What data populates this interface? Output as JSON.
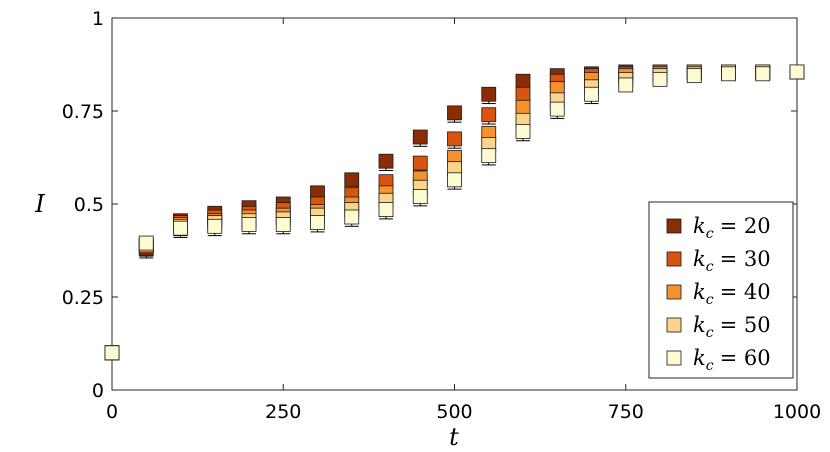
{
  "chart_data": {
    "type": "scatter",
    "title": "",
    "xlabel": "t",
    "ylabel": "I",
    "xlim": [
      0,
      1000
    ],
    "ylim": [
      0,
      1
    ],
    "xticks": [
      "0",
      "250",
      "500",
      "750",
      "1000"
    ],
    "yticks": [
      "0",
      "0.25",
      "0.5",
      "0.75",
      "1"
    ],
    "x": [
      0,
      50,
      100,
      150,
      200,
      250,
      300,
      350,
      400,
      450,
      500,
      550,
      600,
      650,
      700,
      750,
      800,
      850,
      900,
      950,
      1000
    ],
    "legend_position": "bottom-right",
    "grid": false,
    "series": [
      {
        "name": "k_c = 20",
        "legend_var": "k",
        "legend_sub": "c",
        "legend_val": "= 20",
        "color": "#8b2c05",
        "values": [
          0.1,
          0.38,
          0.455,
          0.475,
          0.49,
          0.5,
          0.53,
          0.565,
          0.615,
          0.68,
          0.745,
          0.795,
          0.83,
          0.845,
          0.85,
          0.855,
          0.855,
          0.855,
          0.855,
          0.855,
          0.855
        ]
      },
      {
        "name": "k_c = 30",
        "legend_var": "k",
        "legend_sub": "c",
        "legend_val": "= 30",
        "color": "#d9540e",
        "values": [
          0.1,
          0.385,
          0.45,
          0.465,
          0.475,
          0.485,
          0.5,
          0.525,
          0.56,
          0.61,
          0.675,
          0.74,
          0.795,
          0.83,
          0.845,
          0.85,
          0.855,
          0.855,
          0.855,
          0.855,
          0.855
        ]
      },
      {
        "name": "k_c = 40",
        "legend_var": "k",
        "legend_sub": "c",
        "legend_val": "= 40",
        "color": "#f5922e",
        "values": [
          0.1,
          0.39,
          0.445,
          0.455,
          0.465,
          0.47,
          0.48,
          0.5,
          0.53,
          0.57,
          0.625,
          0.69,
          0.76,
          0.81,
          0.835,
          0.845,
          0.85,
          0.855,
          0.855,
          0.855,
          0.855
        ]
      },
      {
        "name": "k_c = 50",
        "legend_var": "k",
        "legend_sub": "c",
        "legend_val": "= 50",
        "color": "#fdd38b",
        "values": [
          0.1,
          0.39,
          0.44,
          0.45,
          0.455,
          0.46,
          0.47,
          0.485,
          0.51,
          0.545,
          0.595,
          0.66,
          0.725,
          0.78,
          0.815,
          0.835,
          0.845,
          0.85,
          0.855,
          0.855,
          0.855
        ]
      },
      {
        "name": "k_c = 60",
        "legend_var": "k",
        "legend_sub": "c",
        "legend_val": "= 60",
        "color": "#fefbd2",
        "values": [
          0.1,
          0.395,
          0.435,
          0.44,
          0.445,
          0.445,
          0.45,
          0.465,
          0.485,
          0.52,
          0.565,
          0.63,
          0.695,
          0.755,
          0.795,
          0.82,
          0.835,
          0.845,
          0.85,
          0.85,
          0.855
        ]
      }
    ]
  }
}
